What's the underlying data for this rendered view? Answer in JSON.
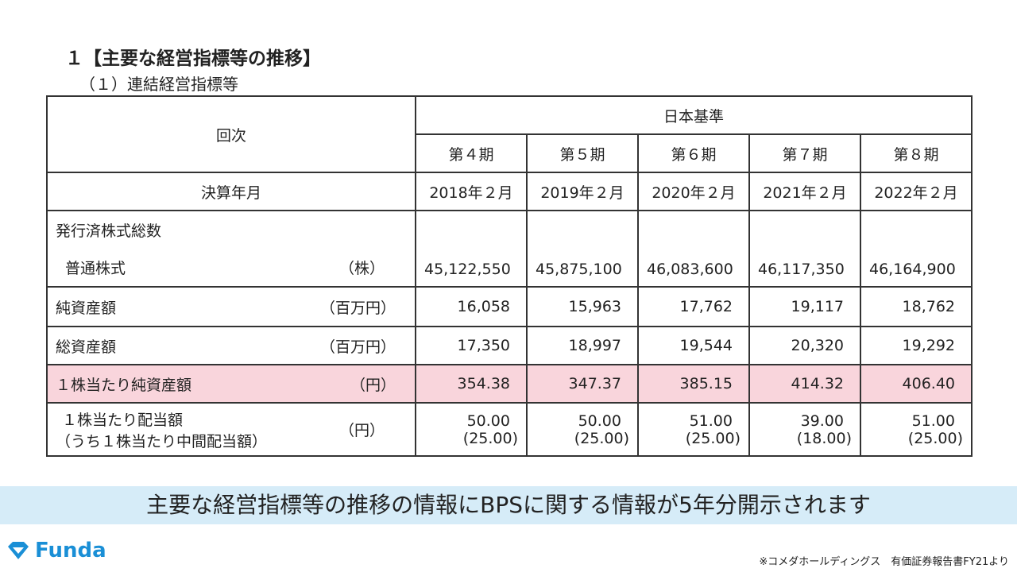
{
  "heading": "１【主要な経営指標等の推移】",
  "subheading": "（１）連結経営指標等",
  "table": {
    "header": {
      "kaiji": "回次",
      "standard": "日本基準",
      "periods": [
        "第４期",
        "第５期",
        "第６期",
        "第７期",
        "第８期"
      ]
    },
    "settlement": {
      "label": "決算年月",
      "values": [
        "2018年２月",
        "2019年２月",
        "2020年２月",
        "2021年２月",
        "2022年２月"
      ]
    },
    "rows": [
      {
        "label": "発行済株式総数",
        "sublabel": "普通株式",
        "unit": "（株）",
        "values": [
          "45,122,550",
          "45,875,100",
          "46,083,600",
          "46,117,350",
          "46,164,900"
        ]
      },
      {
        "label": "純資産額",
        "unit": "（百万円）",
        "values": [
          "16,058",
          "15,963",
          "17,762",
          "19,117",
          "18,762"
        ]
      },
      {
        "label": "総資産額",
        "unit": "（百万円）",
        "values": [
          "17,350",
          "18,997",
          "19,544",
          "20,320",
          "19,292"
        ]
      },
      {
        "label": "１株当たり純資産額",
        "unit": "（円）",
        "highlight": true,
        "values": [
          "354.38",
          "347.37",
          "385.15",
          "414.32",
          "406.40"
        ]
      },
      {
        "label": "１株当たり配当額",
        "sublabel": "（うち１株当たり中間配当額）",
        "unit": "（円）",
        "values": [
          "50.00",
          "50.00",
          "51.00",
          "39.00",
          "51.00"
        ],
        "sub_values": [
          "(25.00)",
          "(25.00)",
          "(25.00)",
          "(18.00)",
          "(25.00)"
        ]
      }
    ]
  },
  "caption": "主要な経営指標等の推移の情報にBPSに関する情報が5年分開示されます",
  "logo": "Funda",
  "footnote": "※コメダホールディングス　有価証券報告書FY21より"
}
